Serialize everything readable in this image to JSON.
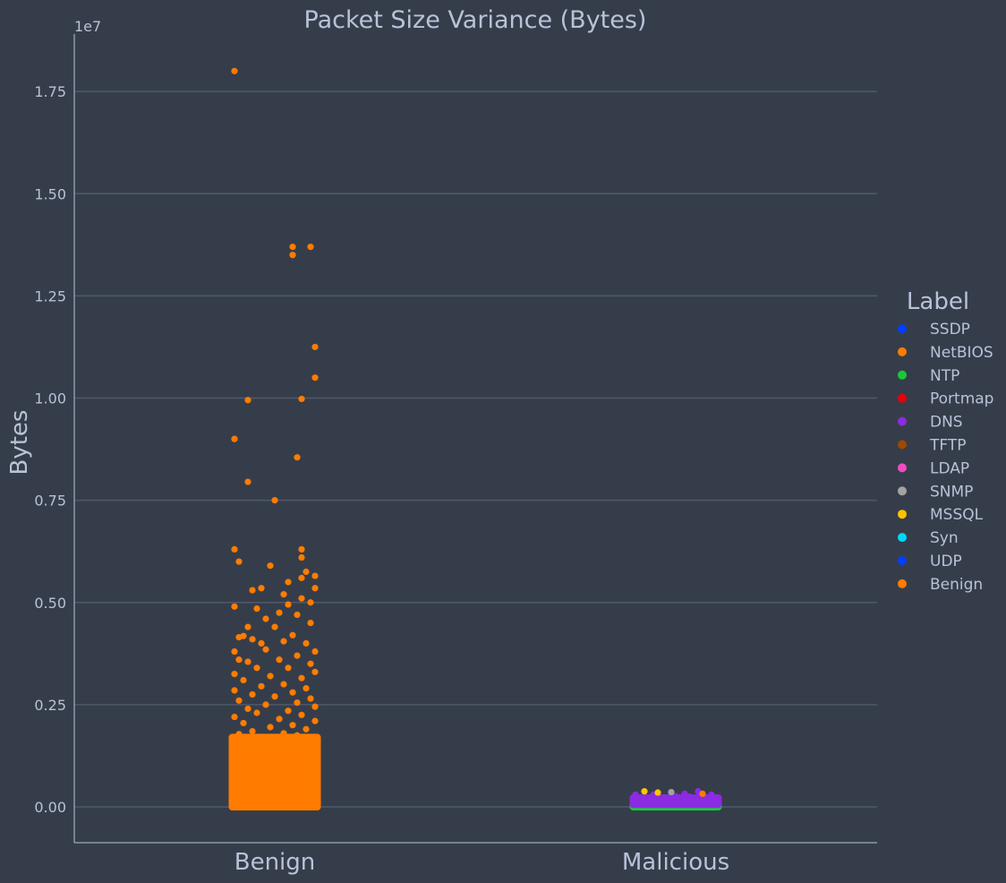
{
  "chart_data": {
    "type": "scatter",
    "title": "Packet Size Variance (Bytes)",
    "ylabel": "Bytes",
    "xlabel": "",
    "y_offset_label": "1e7",
    "categories": [
      "Benign",
      "Malicious"
    ],
    "ylim": [
      -0.09,
      1.89
    ],
    "yticks": [
      "0.00",
      "0.25",
      "0.50",
      "0.75",
      "1.00",
      "1.25",
      "1.50",
      "1.75"
    ],
    "ytick_values": [
      0,
      0.25,
      0.5,
      0.75,
      1.0,
      1.25,
      1.5,
      1.75
    ],
    "grid": true,
    "legend": {
      "title": "Label",
      "position": "right",
      "entries": [
        {
          "name": "SSDP",
          "color": "#023eff"
        },
        {
          "name": "NetBIOS",
          "color": "#ff7c00"
        },
        {
          "name": "NTP",
          "color": "#1ac938"
        },
        {
          "name": "Portmap",
          "color": "#e8000b"
        },
        {
          "name": "DNS",
          "color": "#8b2be2"
        },
        {
          "name": "TFTP",
          "color": "#9f4800"
        },
        {
          "name": "LDAP",
          "color": "#f14cc1"
        },
        {
          "name": "SNMP",
          "color": "#a3a3a3"
        },
        {
          "name": "MSSQL",
          "color": "#ffc400"
        },
        {
          "name": "Syn",
          "color": "#00d7ff"
        },
        {
          "name": "UDP",
          "color": "#023eff"
        },
        {
          "name": "Benign",
          "color": "#ff7c00"
        }
      ]
    },
    "series": [
      {
        "name": "Benign",
        "category": "Benign",
        "color": "#ff7c00",
        "dense_range": [
          0,
          0.17
        ],
        "points": [
          [
            -0.09,
            1.8
          ],
          [
            0.04,
            1.37
          ],
          [
            0.08,
            1.37
          ],
          [
            0.04,
            1.35
          ],
          [
            0.09,
            1.125
          ],
          [
            0.09,
            1.05
          ],
          [
            -0.06,
            0.995
          ],
          [
            0.06,
            0.998
          ],
          [
            -0.09,
            0.9
          ],
          [
            0.05,
            0.855
          ],
          [
            -0.06,
            0.795
          ],
          [
            0.0,
            0.75
          ],
          [
            -0.09,
            0.63
          ],
          [
            0.06,
            0.63
          ],
          [
            -0.08,
            0.6
          ],
          [
            0.06,
            0.61
          ],
          [
            -0.01,
            0.59
          ],
          [
            0.07,
            0.575
          ],
          [
            0.09,
            0.565
          ],
          [
            0.06,
            0.56
          ],
          [
            0.03,
            0.55
          ],
          [
            -0.05,
            0.53
          ],
          [
            -0.03,
            0.535
          ],
          [
            0.02,
            0.52
          ],
          [
            0.09,
            0.535
          ],
          [
            0.06,
            0.51
          ],
          [
            0.08,
            0.5
          ],
          [
            -0.09,
            0.49
          ],
          [
            0.03,
            0.495
          ],
          [
            -0.04,
            0.485
          ],
          [
            0.01,
            0.475
          ],
          [
            0.05,
            0.47
          ],
          [
            -0.02,
            0.46
          ],
          [
            0.08,
            0.45
          ],
          [
            -0.06,
            0.44
          ],
          [
            0.0,
            0.44
          ],
          [
            0.04,
            0.42
          ],
          [
            -0.08,
            0.415
          ],
          [
            -0.07,
            0.418
          ],
          [
            -0.05,
            0.41
          ],
          [
            0.02,
            0.405
          ],
          [
            -0.03,
            0.4
          ],
          [
            0.07,
            0.4
          ],
          [
            -0.09,
            0.38
          ],
          [
            0.09,
            0.38
          ],
          [
            -0.02,
            0.385
          ],
          [
            0.05,
            0.37
          ],
          [
            -0.08,
            0.36
          ],
          [
            0.01,
            0.36
          ],
          [
            -0.06,
            0.355
          ],
          [
            0.08,
            0.35
          ],
          [
            -0.04,
            0.34
          ],
          [
            0.03,
            0.34
          ],
          [
            0.09,
            0.33
          ],
          [
            -0.09,
            0.325
          ],
          [
            -0.01,
            0.32
          ],
          [
            0.06,
            0.315
          ],
          [
            -0.07,
            0.31
          ],
          [
            0.02,
            0.3
          ],
          [
            -0.03,
            0.295
          ],
          [
            0.07,
            0.29
          ],
          [
            -0.09,
            0.285
          ],
          [
            0.04,
            0.28
          ],
          [
            -0.05,
            0.275
          ],
          [
            0.0,
            0.27
          ],
          [
            0.08,
            0.265
          ],
          [
            -0.08,
            0.26
          ],
          [
            0.05,
            0.255
          ],
          [
            -0.02,
            0.25
          ],
          [
            0.09,
            0.245
          ],
          [
            -0.06,
            0.24
          ],
          [
            0.03,
            0.235
          ],
          [
            -0.04,
            0.23
          ],
          [
            0.06,
            0.225
          ],
          [
            -0.09,
            0.22
          ],
          [
            0.01,
            0.215
          ],
          [
            0.09,
            0.21
          ],
          [
            -0.07,
            0.205
          ],
          [
            0.04,
            0.2
          ],
          [
            -0.01,
            0.195
          ],
          [
            0.07,
            0.19
          ],
          [
            -0.05,
            0.185
          ],
          [
            0.02,
            0.18
          ],
          [
            -0.08,
            0.178
          ],
          [
            0.05,
            0.175
          ]
        ]
      },
      {
        "name": "NTP",
        "category": "Malicious",
        "color": "#1ac938",
        "dense_range": [
          0,
          0.004
        ]
      },
      {
        "name": "DNS",
        "category": "Malicious",
        "color": "#8b2be2",
        "dense_range": [
          0.006,
          0.022
        ],
        "points": [
          [
            -0.09,
            0.03
          ],
          [
            -0.05,
            0.03
          ],
          [
            -0.01,
            0.028
          ],
          [
            0.02,
            0.032
          ],
          [
            0.05,
            0.038
          ],
          [
            0.08,
            0.03
          ],
          [
            -0.07,
            0.025
          ],
          [
            0.0,
            0.026
          ],
          [
            0.03,
            0.025
          ],
          [
            0.06,
            0.028
          ]
        ]
      },
      {
        "name": "MSSQL",
        "category": "Malicious",
        "color": "#ffc400",
        "points": [
          [
            -0.07,
            0.038
          ],
          [
            -0.04,
            0.035
          ]
        ]
      },
      {
        "name": "SNMP",
        "category": "Malicious",
        "color": "#a3a3a3",
        "points": [
          [
            -0.01,
            0.036
          ]
        ]
      },
      {
        "name": "NetBIOS",
        "category": "Malicious",
        "color": "#ff7c00",
        "points": [
          [
            0.06,
            0.032
          ]
        ]
      }
    ]
  }
}
